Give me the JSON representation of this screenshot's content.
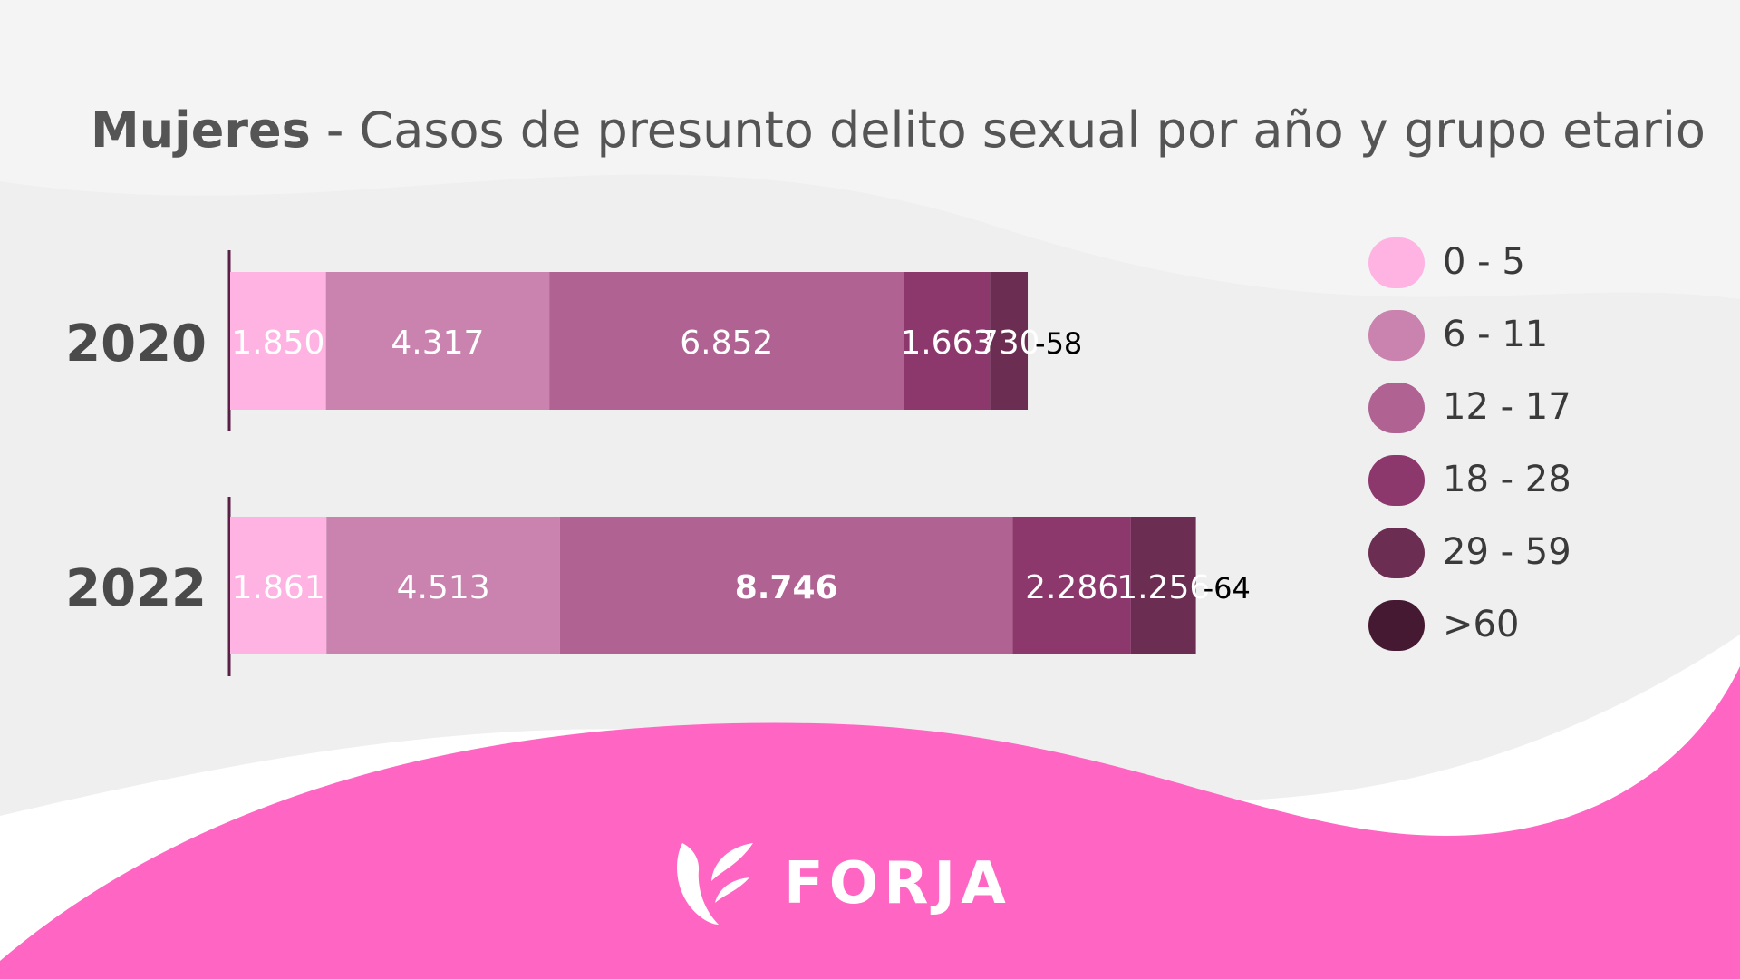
{
  "title": {
    "bold": "Mujeres",
    "rest": " - Casos de presunto delito sexual por año y grupo etario"
  },
  "colors": {
    "background": "#efefef",
    "wave": "#ff66c4",
    "age_groups": [
      "#ffb3e3",
      "#c983ae",
      "#b06293",
      "#8c386c",
      "#6b2e52",
      "#461933"
    ]
  },
  "legend": [
    {
      "label": "0 - 5"
    },
    {
      "label": "6 - 11"
    },
    {
      "label": "12 - 17"
    },
    {
      "label": "18 - 28"
    },
    {
      "label": "29 - 59"
    },
    {
      "label": ">60"
    }
  ],
  "logo": {
    "text": "FORJA",
    "icon": "forja-flame-icon"
  },
  "chart_data": {
    "type": "bar",
    "orientation": "horizontal",
    "stacked": true,
    "title": "Mujeres - Casos de presunto delito sexual por año y grupo etario",
    "categories": [
      "2020",
      "2022"
    ],
    "series": [
      {
        "name": "0 - 5",
        "values": [
          1850,
          1861
        ],
        "labels": [
          "1.850",
          "1.861"
        ]
      },
      {
        "name": "6 - 11",
        "values": [
          4317,
          4513
        ],
        "labels": [
          "4.317",
          "4.513"
        ]
      },
      {
        "name": "12 - 17",
        "values": [
          6852,
          8746
        ],
        "labels": [
          "6.852",
          "8.746"
        ]
      },
      {
        "name": "18 - 28",
        "values": [
          1663,
          2286
        ],
        "labels": [
          "1.663",
          "2.286"
        ]
      },
      {
        "name": "29 - 59",
        "values": [
          730,
          1256
        ],
        "labels": [
          "730",
          "1.256"
        ]
      },
      {
        "name": ">60",
        "values": [
          58,
          64
        ],
        "labels": [
          "-58",
          "-64"
        ]
      }
    ],
    "legend_position": "right",
    "grid": false
  }
}
